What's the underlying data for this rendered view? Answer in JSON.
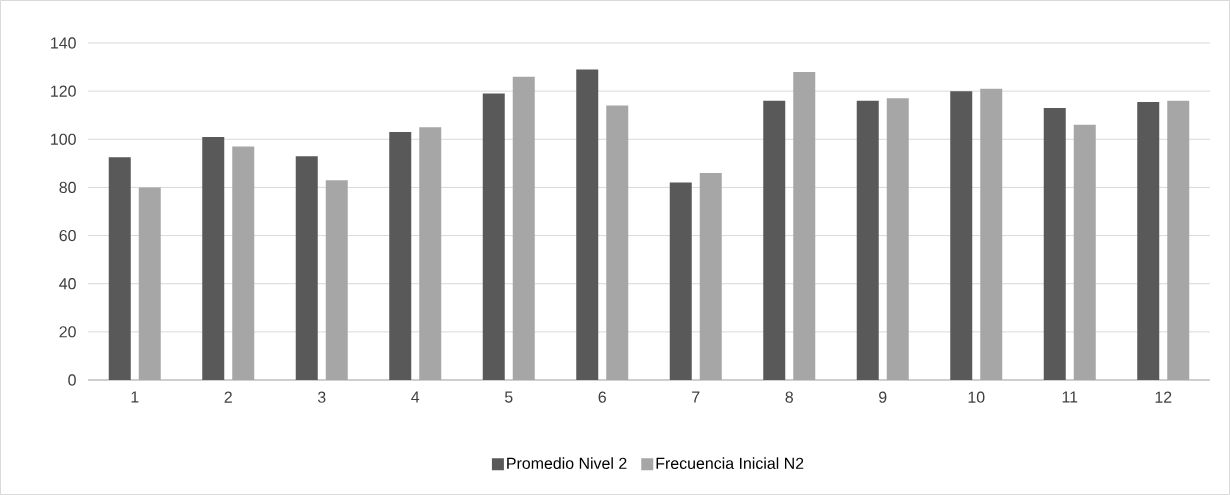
{
  "chart_data": {
    "type": "bar",
    "categories": [
      "1",
      "2",
      "3",
      "4",
      "5",
      "6",
      "7",
      "8",
      "9",
      "10",
      "11",
      "12"
    ],
    "series": [
      {
        "name": "Promedio Nivel 2",
        "color": "#595959",
        "values": [
          92.5,
          101,
          93,
          103,
          119,
          129,
          82,
          116,
          116,
          120,
          113,
          115.5
        ]
      },
      {
        "name": "Frecuencia Inicial N2",
        "color": "#a6a6a6",
        "values": [
          80,
          97,
          83,
          105,
          126,
          114,
          86,
          128,
          117,
          121,
          106,
          116
        ]
      }
    ],
    "ylim": [
      0,
      140
    ],
    "yticks": [
      0,
      20,
      40,
      60,
      80,
      100,
      120,
      140
    ],
    "grid": "y",
    "legend": "bottom"
  }
}
